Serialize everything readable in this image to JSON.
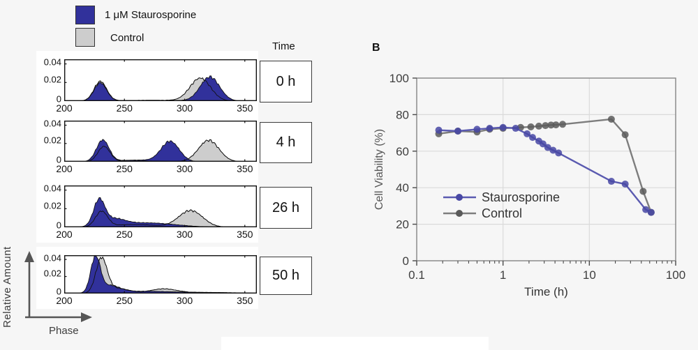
{
  "panel_a": {
    "legend": [
      {
        "label": "1 μM Staurosporine",
        "color": "#31319b"
      },
      {
        "label": "Control",
        "color": "#cdcdcd"
      }
    ],
    "time_header": "Time",
    "y_axis_label": "Relative  Amount",
    "x_axis_label": "Phase"
  },
  "panel_b": {
    "label": "B"
  },
  "chart_data": [
    {
      "type": "area",
      "subtype": "overlaid-flow-histogram",
      "time": "0 h",
      "xlim": [
        200,
        360
      ],
      "ylim": [
        0,
        0.045
      ],
      "x_ticks": [
        200,
        250,
        300,
        350
      ],
      "y_ticks": [
        0,
        0.02,
        0.04
      ],
      "series": [
        {
          "name": "Control",
          "color": "#cdcdcd",
          "peaks": [
            {
              "center": 230,
              "height": 0.021,
              "width": 5.2
            },
            {
              "center": 313,
              "height": 0.0245,
              "width": 8.5
            },
            {
              "center": 272,
              "height": 0.0009,
              "width": 28
            }
          ]
        },
        {
          "name": "1 uM Staurosporine",
          "color": "#31319b",
          "peaks": [
            {
              "center": 230,
              "height": 0.0195,
              "width": 5.2
            },
            {
              "center": 321,
              "height": 0.026,
              "width": 8.0
            },
            {
              "center": 272,
              "height": 0.0008,
              "width": 28
            }
          ]
        }
      ]
    },
    {
      "type": "area",
      "subtype": "overlaid-flow-histogram",
      "time": "4 h",
      "xlim": [
        200,
        360
      ],
      "ylim": [
        0,
        0.045
      ],
      "x_ticks": [
        200,
        250,
        300,
        350
      ],
      "y_ticks": [
        0,
        0.02,
        0.04
      ],
      "series": [
        {
          "name": "Control",
          "color": "#cdcdcd",
          "peaks": [
            {
              "center": 233,
              "height": 0.0165,
              "width": 5.0
            },
            {
              "center": 320,
              "height": 0.0235,
              "width": 8.5
            },
            {
              "center": 262,
              "height": 0.001,
              "width": 20
            }
          ]
        },
        {
          "name": "1 uM Staurosporine",
          "color": "#31319b",
          "peaks": [
            {
              "center": 232,
              "height": 0.0235,
              "width": 5.2
            },
            {
              "center": 288,
              "height": 0.022,
              "width": 7.5
            },
            {
              "center": 260,
              "height": 0.0018,
              "width": 18
            }
          ]
        }
      ]
    },
    {
      "type": "area",
      "subtype": "overlaid-flow-histogram",
      "time": "26 h",
      "xlim": [
        200,
        360
      ],
      "ylim": [
        0,
        0.045
      ],
      "x_ticks": [
        200,
        250,
        300,
        350
      ],
      "y_ticks": [
        0,
        0.02,
        0.04
      ],
      "series": [
        {
          "name": "Control",
          "color": "#cdcdcd",
          "peaks": [
            {
              "center": 231,
              "height": 0.0165,
              "width": 5.0
            },
            {
              "center": 258,
              "height": 0.003,
              "width": 18
            },
            {
              "center": 305,
              "height": 0.018,
              "width": 10
            }
          ]
        },
        {
          "name": "1 uM Staurosporine",
          "color": "#31319b",
          "peaks": [
            {
              "center": 229,
              "height": 0.027,
              "width": 4.6
            },
            {
              "center": 241,
              "height": 0.007,
              "width": 9
            },
            {
              "center": 268,
              "height": 0.0048,
              "width": 24
            }
          ]
        }
      ]
    },
    {
      "type": "area",
      "subtype": "overlaid-flow-histogram",
      "time": "50 h",
      "xlim": [
        200,
        360
      ],
      "ylim": [
        0,
        0.045
      ],
      "x_ticks": [
        200,
        250,
        300,
        350
      ],
      "y_ticks": [
        0,
        0.02,
        0.04
      ],
      "series": [
        {
          "name": "Control",
          "color": "#cdcdcd",
          "peaks": [
            {
              "center": 231,
              "height": 0.04,
              "width": 4.6
            },
            {
              "center": 244,
              "height": 0.006,
              "width": 10
            },
            {
              "center": 282,
              "height": 0.005,
              "width": 11
            },
            {
              "center": 315,
              "height": 0.0012,
              "width": 25
            }
          ]
        },
        {
          "name": "1 uM Staurosporine",
          "color": "#31319b",
          "peaks": [
            {
              "center": 226,
              "height": 0.042,
              "width": 3.9
            },
            {
              "center": 238,
              "height": 0.008,
              "width": 8
            },
            {
              "center": 262,
              "height": 0.0025,
              "width": 25
            },
            {
              "center": 320,
              "height": 0.0012,
              "width": 30
            }
          ]
        }
      ]
    },
    {
      "type": "line",
      "panel": "B",
      "title": "",
      "xlabel": "Time (h)",
      "ylabel": "Cell Viability (%)",
      "xscale": "log",
      "xlim": [
        0.1,
        100
      ],
      "ylim": [
        0,
        100
      ],
      "x_ticks": [
        0.1,
        1,
        10,
        100
      ],
      "y_ticks": [
        0,
        20,
        40,
        60,
        80,
        100
      ],
      "grid": true,
      "legend_position": "center-left",
      "series": [
        {
          "name": "Control",
          "line_color": "#7d7d7d",
          "marker_color": "#5a5a5a",
          "points": [
            [
              0.18,
              69.5
            ],
            [
              0.3,
              71
            ],
            [
              0.5,
              70.5
            ],
            [
              0.7,
              72
            ],
            [
              1.0,
              72.5
            ],
            [
              1.6,
              73
            ],
            [
              2.1,
              73.3
            ],
            [
              2.6,
              73.7
            ],
            [
              3.1,
              74
            ],
            [
              3.6,
              74.3
            ],
            [
              4.1,
              74.4
            ],
            [
              4.9,
              74.7
            ],
            [
              18,
              77.5
            ],
            [
              26,
              69
            ],
            [
              42,
              38
            ],
            [
              52,
              26.5
            ]
          ]
        },
        {
          "name": "Staurosporine",
          "line_color": "#5a5ab0",
          "marker_color": "#4848a4",
          "points": [
            [
              0.18,
              71.5
            ],
            [
              0.3,
              71
            ],
            [
              0.5,
              72
            ],
            [
              0.7,
              72.5
            ],
            [
              1.0,
              73
            ],
            [
              1.4,
              72.5
            ],
            [
              1.9,
              69.5
            ],
            [
              2.2,
              67.5
            ],
            [
              2.6,
              65.5
            ],
            [
              2.9,
              64
            ],
            [
              3.3,
              62
            ],
            [
              3.8,
              60.5
            ],
            [
              4.4,
              59
            ],
            [
              18,
              43.5
            ],
            [
              26,
              42
            ],
            [
              45,
              28
            ],
            [
              52,
              26.5
            ]
          ]
        }
      ]
    }
  ]
}
